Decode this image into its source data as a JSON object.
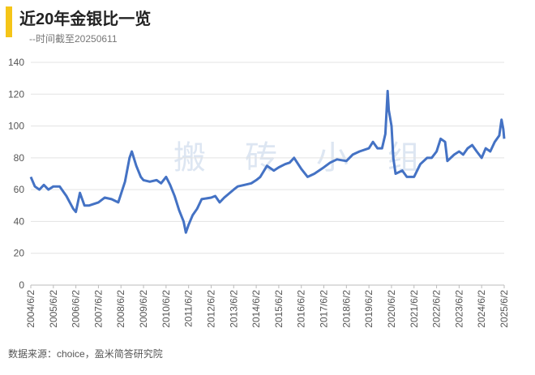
{
  "title": "近20年金银比一览",
  "subtitle": "--时间截至20250611",
  "source": "数据来源：choice，盈米简答研究院",
  "watermark": "搬砖小组",
  "chart_data": {
    "type": "line",
    "color": "#4472c4",
    "grid": true,
    "xlim": [
      2004.42,
      2025.42
    ],
    "ylim": [
      0,
      140
    ],
    "yticks": [
      0,
      20,
      40,
      60,
      80,
      100,
      120,
      140
    ],
    "xticks": [
      {
        "value": 2004.42,
        "label": "2004/6/2"
      },
      {
        "value": 2005.42,
        "label": "2005/6/2"
      },
      {
        "value": 2006.42,
        "label": "2006/6/2"
      },
      {
        "value": 2007.42,
        "label": "2007/6/2"
      },
      {
        "value": 2008.42,
        "label": "2008/6/2"
      },
      {
        "value": 2009.42,
        "label": "2009/6/2"
      },
      {
        "value": 2010.42,
        "label": "2010/6/2"
      },
      {
        "value": 2011.42,
        "label": "2011/6/2"
      },
      {
        "value": 2012.42,
        "label": "2012/6/2"
      },
      {
        "value": 2013.42,
        "label": "2013/6/2"
      },
      {
        "value": 2014.42,
        "label": "2014/6/2"
      },
      {
        "value": 2015.42,
        "label": "2015/6/2"
      },
      {
        "value": 2016.42,
        "label": "2016/6/2"
      },
      {
        "value": 2017.42,
        "label": "2017/6/2"
      },
      {
        "value": 2018.42,
        "label": "2018/6/2"
      },
      {
        "value": 2019.42,
        "label": "2019/6/2"
      },
      {
        "value": 2020.42,
        "label": "2020/6/2"
      },
      {
        "value": 2021.42,
        "label": "2021/6/2"
      },
      {
        "value": 2022.42,
        "label": "2022/6/2"
      },
      {
        "value": 2023.42,
        "label": "2023/6/2"
      },
      {
        "value": 2024.42,
        "label": "2024/6/2"
      },
      {
        "value": 2025.42,
        "label": "2025/6/2"
      }
    ],
    "x": [
      2004.42,
      2004.6,
      2004.8,
      2005.0,
      2005.2,
      2005.42,
      2005.7,
      2006.0,
      2006.3,
      2006.42,
      2006.6,
      2006.8,
      2007.0,
      2007.42,
      2007.7,
      2008.0,
      2008.3,
      2008.6,
      2008.8,
      2008.9,
      2009.1,
      2009.3,
      2009.42,
      2009.7,
      2010.0,
      2010.2,
      2010.42,
      2010.6,
      2010.8,
      2011.0,
      2011.2,
      2011.3,
      2011.42,
      2011.6,
      2011.8,
      2012.0,
      2012.42,
      2012.6,
      2012.8,
      2013.0,
      2013.42,
      2013.6,
      2013.9,
      2014.2,
      2014.42,
      2014.6,
      2014.9,
      2015.2,
      2015.42,
      2015.7,
      2015.9,
      2016.1,
      2016.42,
      2016.7,
      2017.0,
      2017.42,
      2017.7,
      2018.0,
      2018.42,
      2018.7,
      2019.0,
      2019.42,
      2019.6,
      2019.8,
      2020.0,
      2020.15,
      2020.25,
      2020.3,
      2020.42,
      2020.5,
      2020.6,
      2020.9,
      2021.1,
      2021.42,
      2021.7,
      2022.0,
      2022.2,
      2022.42,
      2022.6,
      2022.8,
      2022.9,
      2023.2,
      2023.42,
      2023.6,
      2023.8,
      2024.0,
      2024.2,
      2024.42,
      2024.6,
      2024.8,
      2025.0,
      2025.2,
      2025.3,
      2025.38,
      2025.42
    ],
    "series": [
      {
        "name": "金银比",
        "color": "#4472c4",
        "values": [
          68,
          62,
          60,
          63,
          60,
          62,
          62,
          56,
          48,
          46,
          58,
          50,
          50,
          52,
          55,
          54,
          52,
          65,
          80,
          84,
          75,
          68,
          66,
          65,
          66,
          64,
          68,
          63,
          56,
          47,
          40,
          33,
          38,
          44,
          48,
          54,
          55,
          56,
          52,
          55,
          60,
          62,
          63,
          64,
          66,
          68,
          75,
          72,
          74,
          76,
          77,
          80,
          73,
          68,
          70,
          74,
          77,
          79,
          78,
          82,
          84,
          86,
          90,
          86,
          86,
          95,
          122,
          110,
          100,
          80,
          70,
          72,
          68,
          68,
          76,
          80,
          80,
          84,
          92,
          90,
          78,
          82,
          84,
          82,
          86,
          88,
          84,
          80,
          86,
          84,
          90,
          94,
          104,
          98,
          92
        ]
      }
    ]
  }
}
